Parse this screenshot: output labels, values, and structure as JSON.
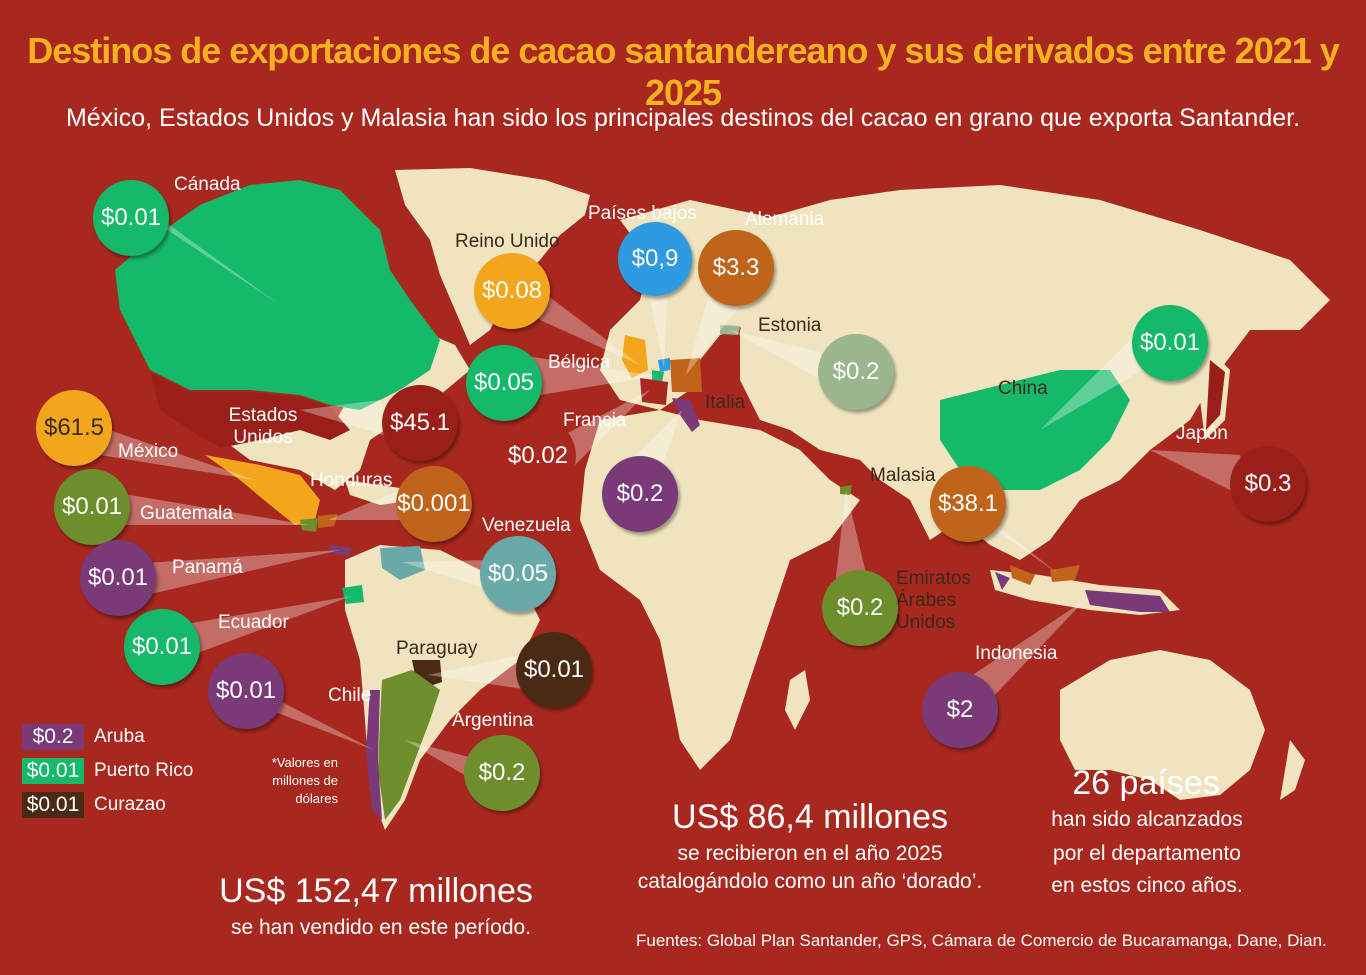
{
  "title": "Destinos de exportaciones de cacao santandereano y sus derivados entre 2021 y 2025",
  "subtitle": "México, Estados Unidos y Malasia han sido los principales destinos del cacao en grano que exporta Santander.",
  "colors": {
    "background": "#a8281f",
    "land": "#efe4bf",
    "title": "#f7b11e",
    "green": "#16b86a",
    "olive": "#6e8d2c",
    "purple": "#7a3a78",
    "orange": "#f3a51b",
    "brown_orange": "#c0641c",
    "blue": "#2e9be0",
    "sage": "#9bb58f",
    "teal": "#6aa9a7",
    "dark_red": "#9a1f19",
    "dark_brown": "#4a2a12"
  },
  "countries": [
    {
      "name": "Cánada",
      "value": "$0.01",
      "color": "#16b86a"
    },
    {
      "name": "Reino Unido",
      "value": "$0.08",
      "color": "#f3a51b"
    },
    {
      "name": "Países bajos",
      "value": "$0,9",
      "color": "#2e9be0"
    },
    {
      "name": "Alemania",
      "value": "$3.3",
      "color": "#c0641c"
    },
    {
      "name": "Estonia",
      "value": "$0.2",
      "color": "#9bb58f"
    },
    {
      "name": "Bélgica",
      "value": "$0.05",
      "color": "#16b86a"
    },
    {
      "name": "Francia",
      "value": "$0.02",
      "color": "#a8281f"
    },
    {
      "name": "Italia",
      "value": "$0.2",
      "color": "#7a3a78"
    },
    {
      "name": "Estados Unidos",
      "value": "$45.1",
      "color": "#9a1f19"
    },
    {
      "name": "México",
      "value": "$61.5",
      "color": "#f3a51b"
    },
    {
      "name": "Honduras",
      "value": "$0.001",
      "color": "#c0641c"
    },
    {
      "name": "Guatemala",
      "value": "$0.01",
      "color": "#6e8d2c"
    },
    {
      "name": "Venezuela",
      "value": "$0.05",
      "color": "#6aa9a7"
    },
    {
      "name": "Panamá",
      "value": "$0.01",
      "color": "#7a3a78"
    },
    {
      "name": "Ecuador",
      "value": "$0.01",
      "color": "#16b86a"
    },
    {
      "name": "Paraguay",
      "value": "$0.01",
      "color": "#4a2a12"
    },
    {
      "name": "Chile",
      "value": "$0.01",
      "color": "#7a3a78"
    },
    {
      "name": "Argentina",
      "value": "$0.2",
      "color": "#6e8d2c"
    },
    {
      "name": "China",
      "value": "$0.01",
      "color": "#16b86a"
    },
    {
      "name": "Japón",
      "value": "$0.3",
      "color": "#9a1f19"
    },
    {
      "name": "Malasia",
      "value": "$38.1",
      "color": "#c0641c"
    },
    {
      "name": "Emiratos Árabes Unidos",
      "value": "$0.2",
      "color": "#6e8d2c"
    },
    {
      "name": "Indonesia",
      "value": "$2",
      "color": "#7a3a78"
    }
  ],
  "legend": [
    {
      "value": "$0.2",
      "name": "Aruba",
      "color": "#7a3a78"
    },
    {
      "value": "$0.01",
      "name": "Puerto Rico",
      "color": "#16b86a"
    },
    {
      "value": "$0.01",
      "name": "Curazao",
      "color": "#4a2a12"
    }
  ],
  "note": "*Valores en millones de dólares",
  "stats": {
    "total_value": "US$ 152,47 millones",
    "total_text": "se han vendido en este período.",
    "year_value": "US$ 86,4 millones",
    "year_text_1": "se recibieron en el año 2025",
    "year_text_2": "catalogándolo como un año ‘dorado’.",
    "countries_value": "26 países",
    "countries_text_1": "han sido alcanzados",
    "countries_text_2": "por el departamento",
    "countries_text_3": "en estos cinco años."
  },
  "source": "Fuentes: Global Plan Santander, GPS, Cámara de Comercio de Bucaramanga, Dane, Dian."
}
